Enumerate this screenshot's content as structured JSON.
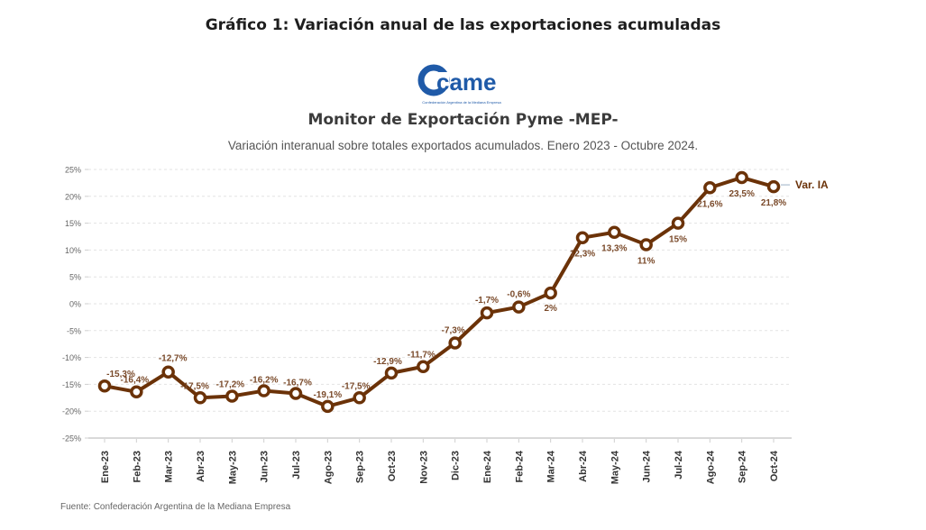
{
  "page": {
    "title": "Gráfico 1: Variación anual de las exportaciones acumuladas",
    "source": "Fuente: Confederación Argentina de la Mediana Empresa"
  },
  "logo": {
    "text": "came",
    "tagline": "Confederación Argentina de la Mediana Empresa",
    "color": "#1f5aa8"
  },
  "chart_data": {
    "type": "line",
    "title": "Monitor de Exportación Pyme -MEP-",
    "subtitle": "Variación interanual sobre totales exportados acumulados. Enero 2023 - Octubre 2024.",
    "xlabel": "",
    "ylabel": "",
    "ylim": [
      -25,
      25
    ],
    "yticks": [
      25,
      20,
      15,
      10,
      5,
      0,
      -5,
      -10,
      -15,
      -20,
      -25
    ],
    "ytick_labels": [
      "25%",
      "20%",
      "15%",
      "10%",
      "5%",
      "0%",
      "-5%",
      "-10%",
      "-15%",
      "-20%",
      "-25%"
    ],
    "grid": true,
    "categories": [
      "Ene-23",
      "Feb-23",
      "Mar-23",
      "Abr-23",
      "May-23",
      "Jun-23",
      "Jul-23",
      "Ago-23",
      "Sep-23",
      "Oct-23",
      "Nov-23",
      "Dic-23",
      "Ene-24",
      "Feb-24",
      "Mar-24",
      "Abr-24",
      "May-24",
      "Jun-24",
      "Jul-24",
      "Ago-24",
      "Sep-24",
      "Oct-24"
    ],
    "series": [
      {
        "name": "Var. IA",
        "color": "#6b3208",
        "values": [
          -15.3,
          -16.4,
          -12.7,
          -17.5,
          -17.2,
          -16.2,
          -16.7,
          -19.1,
          -17.5,
          -12.9,
          -11.7,
          -7.3,
          -1.7,
          -0.6,
          2,
          12.3,
          13.3,
          11,
          15,
          21.6,
          23.5,
          21.8
        ],
        "labels": [
          "-15,3%",
          "-16,4%",
          "-12,7%",
          "-17,5%",
          "-17,2%",
          "-16,2%",
          "-16,7%",
          "-19,1%",
          "-17,5%",
          "-12,9%",
          "-11,7%",
          "-7,3%",
          "-1,7%",
          "-0,6%",
          "2%",
          "12,3%",
          "13,3%",
          "11%",
          "15%",
          "21,6%",
          "23,5%",
          "21,8%"
        ]
      }
    ],
    "legend": "right"
  }
}
